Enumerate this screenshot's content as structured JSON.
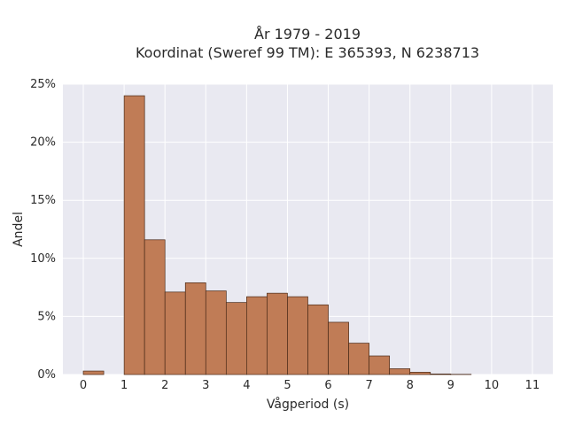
{
  "chart_data": {
    "type": "bar",
    "title": "År 1979 - 2019",
    "subtitle": "Koordinat (Sweref 99 TM): E 365393, N 6238713",
    "xlabel": "Vågperiod (s)",
    "ylabel": "Andel",
    "bin_width": 0.5,
    "xlim": [
      -0.5,
      11.5
    ],
    "ylim": [
      0,
      25
    ],
    "xticks": [
      0,
      1,
      2,
      3,
      4,
      5,
      6,
      7,
      8,
      9,
      10,
      11
    ],
    "xtick_labels": [
      "0",
      "1",
      "2",
      "3",
      "4",
      "5",
      "6",
      "7",
      "8",
      "9",
      "10",
      "11"
    ],
    "yticks": [
      0,
      5,
      10,
      15,
      20,
      25
    ],
    "ytick_labels": [
      "0%",
      "5%",
      "10%",
      "15%",
      "20%",
      "25%"
    ],
    "grid": true,
    "bar_color": "#c07c56",
    "edge_color": "#4a2a18",
    "background": "#e9e9f1",
    "bins": [
      {
        "x": 0.0,
        "value": 0.3
      },
      {
        "x": 1.0,
        "value": 24.0
      },
      {
        "x": 1.5,
        "value": 11.6
      },
      {
        "x": 2.0,
        "value": 7.1
      },
      {
        "x": 2.5,
        "value": 7.9
      },
      {
        "x": 3.0,
        "value": 7.2
      },
      {
        "x": 3.5,
        "value": 6.2
      },
      {
        "x": 4.0,
        "value": 6.7
      },
      {
        "x": 4.5,
        "value": 7.0
      },
      {
        "x": 5.0,
        "value": 6.7
      },
      {
        "x": 5.5,
        "value": 6.0
      },
      {
        "x": 6.0,
        "value": 4.5
      },
      {
        "x": 6.5,
        "value": 2.7
      },
      {
        "x": 7.0,
        "value": 1.6
      },
      {
        "x": 7.5,
        "value": 0.5
      },
      {
        "x": 8.0,
        "value": 0.2
      },
      {
        "x": 8.5,
        "value": 0.05
      },
      {
        "x": 9.0,
        "value": 0.02
      }
    ]
  }
}
